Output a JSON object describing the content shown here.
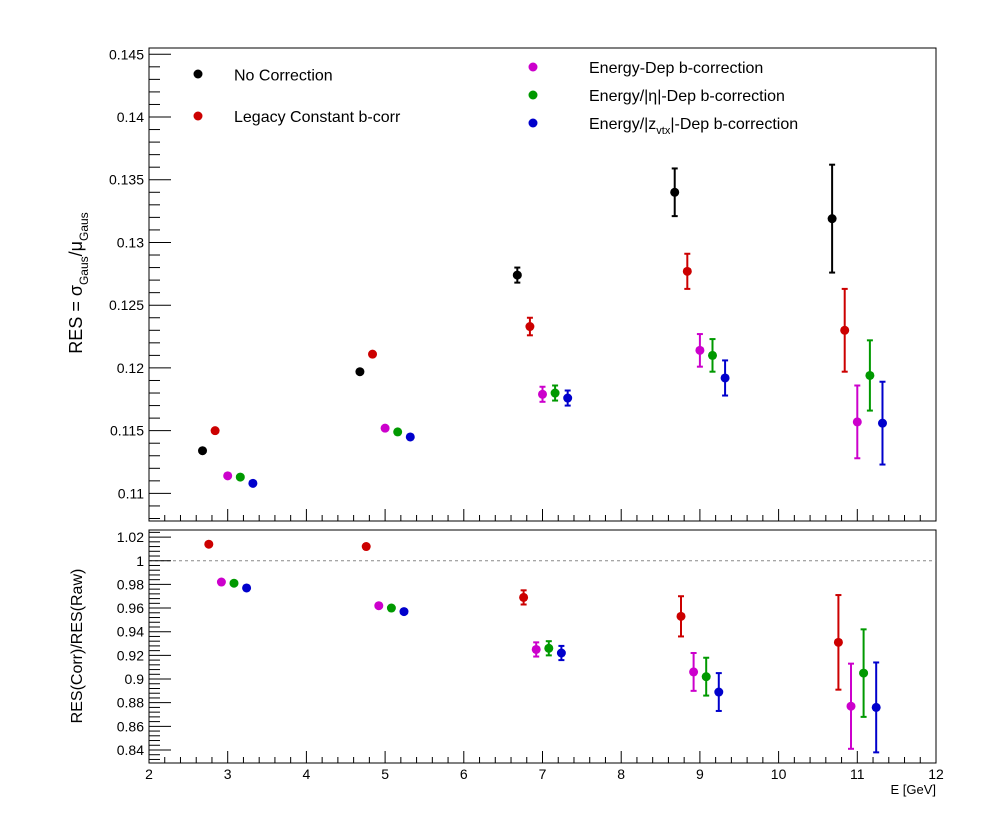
{
  "chart_data": [
    {
      "type": "scatter",
      "panel": "top",
      "ylabel": "RES = σGaus/μGaus",
      "ylabel_parts": {
        "a": "RES = σ",
        "b": "Gaus",
        "c": "/μ",
        "d": "Gaus"
      },
      "ylim": [
        0.1078,
        0.1455
      ],
      "xlim": [
        2,
        12
      ],
      "yticks": [
        0.11,
        0.115,
        0.12,
        0.125,
        0.13,
        0.135,
        0.14,
        0.145
      ],
      "ytick_labels": [
        "0.11",
        "0.115",
        "0.12",
        "0.125",
        "0.13",
        "0.135",
        "0.14",
        "0.145"
      ],
      "legend_left": [
        {
          "label": "No Correction",
          "color": "#000000"
        },
        {
          "label": "Legacy Constant b-corr",
          "color": "#cc0000"
        }
      ],
      "legend_right": [
        {
          "label": "Energy-Dep b-correction",
          "color": "#cc00cc"
        },
        {
          "label": "Energy/|η|-Dep b-correction",
          "color": "#009900"
        },
        {
          "label_a": "Energy/|z",
          "label_sub": "vtx",
          "label_b": "|-Dep b-correction",
          "label": "Energy/|zvtx|-Dep b-correction",
          "color": "#0000cc"
        }
      ],
      "series": [
        {
          "name": "No Correction",
          "color": "#000000",
          "x": [
            2.68,
            4.68,
            6.68,
            8.68,
            10.68
          ],
          "y": [
            0.1134,
            0.1197,
            0.1274,
            0.134,
            0.1319
          ],
          "err": [
            0.0001,
            0.0001,
            0.0006,
            0.0019,
            0.0043
          ]
        },
        {
          "name": "Legacy Constant b-corr",
          "color": "#cc0000",
          "x": [
            2.84,
            4.84,
            6.84,
            8.84,
            10.84
          ],
          "y": [
            0.115,
            0.1211,
            0.1233,
            0.1277,
            0.123
          ],
          "err": [
            0.0001,
            0.0001,
            0.0007,
            0.0014,
            0.0033
          ]
        },
        {
          "name": "Energy-Dep b-correction",
          "color": "#cc00cc",
          "x": [
            3.0,
            5.0,
            7.0,
            9.0,
            11.0
          ],
          "y": [
            0.1114,
            0.1152,
            0.1179,
            0.1214,
            0.1157
          ],
          "err": [
            0.0001,
            0.0001,
            0.0006,
            0.0013,
            0.0029
          ]
        },
        {
          "name": "Energy/|η|-Dep b-correction",
          "color": "#009900",
          "x": [
            3.16,
            5.16,
            7.16,
            9.16,
            11.16
          ],
          "y": [
            0.1113,
            0.1149,
            0.118,
            0.121,
            0.1194
          ],
          "err": [
            0.0001,
            0.0001,
            0.0006,
            0.0013,
            0.0028
          ]
        },
        {
          "name": "Energy/|zvtx|-Dep b-correction",
          "color": "#0000cc",
          "x": [
            3.32,
            5.32,
            7.32,
            9.32,
            11.32
          ],
          "y": [
            0.1108,
            0.1145,
            0.1176,
            0.1192,
            0.1156
          ],
          "err": [
            0.0001,
            0.0001,
            0.0006,
            0.0014,
            0.0033
          ]
        }
      ]
    },
    {
      "type": "scatter",
      "panel": "bottom",
      "ylabel": "RES(Corr)/RES(Raw)",
      "xlabel": "E  [GeV]",
      "xlim": [
        2,
        12
      ],
      "ylim": [
        0.829,
        1.026
      ],
      "reference_line": 1,
      "xticks": [
        2,
        3,
        4,
        5,
        6,
        7,
        8,
        9,
        10,
        11,
        12
      ],
      "xtick_labels": [
        "2",
        "3",
        "4",
        "5",
        "6",
        "7",
        "8",
        "9",
        "10",
        "11",
        "12"
      ],
      "yticks": [
        0.84,
        0.86,
        0.88,
        0.9,
        0.92,
        0.94,
        0.96,
        0.98,
        1,
        1.02
      ],
      "ytick_labels": [
        "0.84",
        "0.86",
        "0.88",
        "0.9",
        "0.92",
        "0.94",
        "0.96",
        "0.98",
        "1",
        "1.02"
      ],
      "series": [
        {
          "name": "Legacy Constant b-corr",
          "color": "#cc0000",
          "x": [
            2.76,
            4.76,
            6.76,
            8.76,
            10.76
          ],
          "y": [
            1.014,
            1.012,
            0.969,
            0.953,
            0.931
          ],
          "err": [
            0.001,
            0.002,
            0.006,
            0.017,
            0.04
          ]
        },
        {
          "name": "Energy-Dep b-correction",
          "color": "#cc00cc",
          "x": [
            2.92,
            4.92,
            6.92,
            8.92,
            10.92
          ],
          "y": [
            0.982,
            0.962,
            0.925,
            0.906,
            0.877
          ],
          "err": [
            0.001,
            0.002,
            0.006,
            0.016,
            0.036
          ]
        },
        {
          "name": "Energy/|η|-Dep b-correction",
          "color": "#009900",
          "x": [
            3.08,
            5.08,
            7.08,
            9.08,
            11.08
          ],
          "y": [
            0.981,
            0.96,
            0.926,
            0.902,
            0.905
          ],
          "err": [
            0.001,
            0.002,
            0.006,
            0.016,
            0.037
          ]
        },
        {
          "name": "Energy/|zvtx|-Dep b-correction",
          "color": "#0000cc",
          "x": [
            3.24,
            5.24,
            7.24,
            9.24,
            11.24
          ],
          "y": [
            0.977,
            0.957,
            0.922,
            0.889,
            0.876
          ],
          "err": [
            0.001,
            0.002,
            0.006,
            0.016,
            0.038
          ]
        }
      ]
    }
  ]
}
